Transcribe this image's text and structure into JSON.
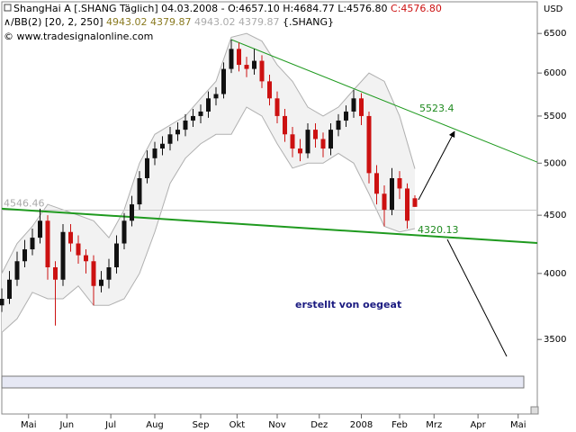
{
  "chart_data": {
    "type": "candlestick",
    "title": "ShangHai A [.SHANG Täglich] 04.03.2008",
    "ohlc_label": "- O:4657.10 H:4684.77 L:4576.80",
    "close_label": "C:4576.80",
    "indicator": "BB(2) [20, 2, 250]",
    "band_labels": [
      "4943.02",
      "4379.87",
      "4943.02",
      "4379.87"
    ],
    "symbol": "{.SHANG}",
    "copyright": "© www.tradesignalonline.com",
    "currency": "USD",
    "watermark": "erstellt von oegeat",
    "log_scale": true,
    "ylim": [
      3010,
      6930
    ],
    "yticks": [
      3500,
      4000,
      4500,
      5000,
      5500,
      6000,
      6500
    ],
    "xlim": [
      0,
      280
    ],
    "xticks": [
      {
        "value": 14,
        "label": "Mai"
      },
      {
        "value": 34,
        "label": "Jun"
      },
      {
        "value": 57,
        "label": "Jul"
      },
      {
        "value": 80,
        "label": "Aug"
      },
      {
        "value": 104,
        "label": "Sep"
      },
      {
        "value": 123,
        "label": "Okt"
      },
      {
        "value": 144,
        "label": "Nov"
      },
      {
        "value": 166,
        "label": "Dez"
      },
      {
        "value": 188,
        "label": "2008"
      },
      {
        "value": 208,
        "label": "Feb"
      },
      {
        "value": 226,
        "label": "Mrz"
      },
      {
        "value": 249,
        "label": "Apr"
      },
      {
        "value": 270,
        "label": "Mai"
      }
    ],
    "candles": {
      "up_color": "#111111",
      "down_color": "#cc1111",
      "x": [
        0,
        4,
        8,
        12,
        16,
        20,
        24,
        28,
        32,
        36,
        40,
        44,
        48,
        52,
        56,
        60,
        64,
        68,
        72,
        76,
        80,
        84,
        88,
        92,
        96,
        100,
        104,
        108,
        112,
        116,
        120,
        124,
        128,
        132,
        136,
        140,
        144,
        148,
        152,
        156,
        160,
        164,
        168,
        172,
        176,
        180,
        184,
        188,
        192,
        196,
        200,
        204,
        208,
        212,
        216
      ],
      "open": [
        3750,
        3800,
        3950,
        4100,
        4200,
        4300,
        4450,
        4050,
        3950,
        4350,
        4250,
        4150,
        4100,
        3900,
        3950,
        4050,
        4250,
        4450,
        4600,
        4850,
        5050,
        5150,
        5200,
        5300,
        5350,
        5450,
        5500,
        5550,
        5700,
        5750,
        6050,
        6300,
        6100,
        6050,
        6150,
        5900,
        5700,
        5500,
        5300,
        5150,
        5100,
        5350,
        5250,
        5150,
        5350,
        5450,
        5550,
        5700,
        5500,
        4900,
        4700,
        4550,
        4850,
        4750,
        4657.1
      ],
      "high": [
        3880,
        4020,
        4180,
        4280,
        4380,
        4560,
        4500,
        4100,
        4420,
        4420,
        4320,
        4200,
        4150,
        4020,
        4120,
        4320,
        4520,
        4680,
        4920,
        5130,
        5220,
        5280,
        5380,
        5430,
        5520,
        5580,
        5630,
        5780,
        5830,
        6130,
        6420,
        6380,
        6200,
        6300,
        6220,
        5980,
        5780,
        5580,
        5380,
        5250,
        5420,
        5420,
        5320,
        5420,
        5520,
        5620,
        5800,
        5760,
        5550,
        4980,
        4780,
        4950,
        4920,
        4800,
        4684.77
      ],
      "low": [
        3700,
        3760,
        3900,
        4050,
        4150,
        4250,
        3950,
        3600,
        3900,
        4180,
        4080,
        4000,
        3750,
        3850,
        3880,
        4000,
        4200,
        4400,
        4550,
        4800,
        4980,
        5080,
        5130,
        5230,
        5280,
        5380,
        5420,
        5480,
        5620,
        5700,
        6000,
        6020,
        5950,
        5980,
        5820,
        5620,
        5420,
        5220,
        5060,
        5020,
        5050,
        5160,
        5060,
        5080,
        5280,
        5380,
        5480,
        5400,
        4800,
        4600,
        4400,
        4500,
        4650,
        4380,
        4576.8
      ],
      "close": [
        3800,
        3950,
        4100,
        4200,
        4300,
        4450,
        4050,
        3950,
        4350,
        4250,
        4150,
        4100,
        3900,
        3950,
        4050,
        4250,
        4450,
        4600,
        4850,
        5050,
        5150,
        5200,
        5300,
        5350,
        5450,
        5500,
        5550,
        5700,
        5750,
        6050,
        6300,
        6100,
        6050,
        6150,
        5900,
        5700,
        5500,
        5300,
        5150,
        5100,
        5350,
        5250,
        5150,
        5350,
        5450,
        5550,
        5700,
        5500,
        4900,
        4700,
        4550,
        4850,
        4750,
        4450,
        4576.8
      ]
    },
    "bands": {
      "color": "#b0b0b0",
      "fill": "#f2f2f2",
      "x": [
        0,
        8,
        16,
        24,
        32,
        40,
        48,
        56,
        64,
        72,
        80,
        88,
        96,
        104,
        112,
        120,
        128,
        136,
        144,
        152,
        160,
        168,
        176,
        184,
        192,
        200,
        208,
        216
      ],
      "upper": [
        4000,
        4250,
        4400,
        4600,
        4550,
        4500,
        4450,
        4300,
        4550,
        5000,
        5300,
        5400,
        5500,
        5700,
        5900,
        6450,
        6500,
        6400,
        6100,
        5900,
        5600,
        5500,
        5600,
        5800,
        6000,
        5900,
        5500,
        4943
      ],
      "lower": [
        3550,
        3650,
        3850,
        3800,
        3800,
        3900,
        3750,
        3750,
        3800,
        4000,
        4350,
        4800,
        5050,
        5200,
        5300,
        5300,
        5600,
        5500,
        5200,
        4950,
        5000,
        5000,
        5100,
        5000,
        4700,
        4400,
        4350,
        4380
      ]
    },
    "reference_line": 4546.46,
    "trendlines": [
      {
        "color": "#1f9a1f",
        "width": 1,
        "x": [
          120,
          280
        ],
        "values": [
          6420,
          5010
        ]
      },
      {
        "color": "#1f9a1f",
        "width": 2,
        "x": [
          0,
          280
        ],
        "values": [
          4560,
          4254
        ]
      }
    ],
    "annotations": [
      "5523.4",
      "4320.13"
    ]
  }
}
